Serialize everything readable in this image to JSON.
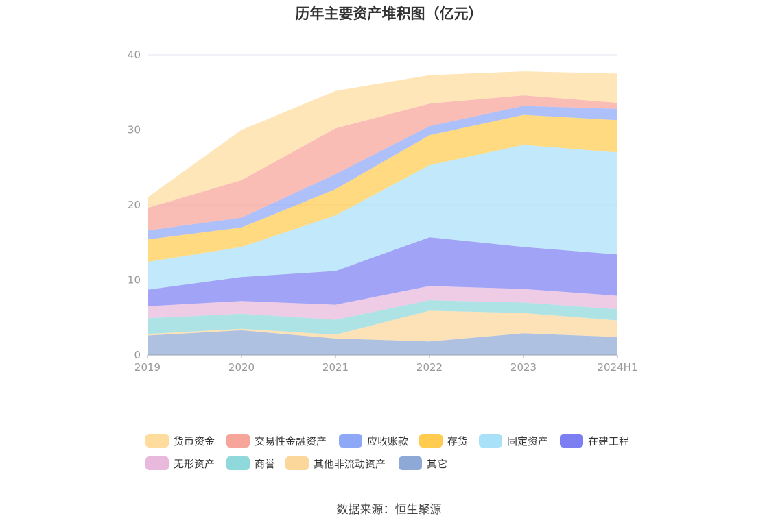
{
  "chart_data": {
    "type": "area",
    "stacked": true,
    "title": "历年主要资产堆积图（亿元）",
    "categories": [
      "2019",
      "2020",
      "2021",
      "2022",
      "2023",
      "2024H1"
    ],
    "ylim": [
      0,
      40
    ],
    "yticks": [
      0,
      10,
      20,
      30,
      40
    ],
    "grid": true,
    "legend_position": "bottom",
    "series": [
      {
        "name": "其它",
        "color": "#8fa9d6",
        "values": [
          2.6,
          3.3,
          2.2,
          1.8,
          2.9,
          2.4
        ]
      },
      {
        "name": "其他非流动资产",
        "color": "#fcd79b",
        "values": [
          0.2,
          0.2,
          0.5,
          4.1,
          2.7,
          2.2
        ]
      },
      {
        "name": "商誉",
        "color": "#8fd8dc",
        "values": [
          2.1,
          2.0,
          2.0,
          1.4,
          1.4,
          1.5
        ]
      },
      {
        "name": "无形资产",
        "color": "#e8b9dc",
        "values": [
          1.6,
          1.7,
          2.0,
          1.9,
          1.8,
          1.8
        ]
      },
      {
        "name": "在建工程",
        "color": "#7b7ff2",
        "values": [
          2.2,
          3.2,
          4.5,
          6.5,
          5.6,
          5.5
        ]
      },
      {
        "name": "固定资产",
        "color": "#a9e1f9",
        "values": [
          3.7,
          4.0,
          7.4,
          9.6,
          13.6,
          13.6
        ]
      },
      {
        "name": "存货",
        "color": "#ffcc4f",
        "values": [
          3.0,
          2.6,
          3.5,
          4.0,
          4.0,
          4.3
        ]
      },
      {
        "name": "应收账款",
        "color": "#8ea8f8",
        "values": [
          1.2,
          1.3,
          2.0,
          1.2,
          1.2,
          1.5
        ]
      },
      {
        "name": "交易性金融资产",
        "color": "#f7a49a",
        "values": [
          3.0,
          5.0,
          6.1,
          3.0,
          1.4,
          0.8
        ]
      },
      {
        "name": "货币资金",
        "color": "#fddc9e",
        "values": [
          1.4,
          6.7,
          5.0,
          3.8,
          3.2,
          3.9
        ]
      }
    ],
    "legend_order": [
      "货币资金",
      "交易性金融资产",
      "应收账款",
      "存货",
      "固定资产",
      "在建工程",
      "无形资产",
      "商誉",
      "其他非流动资产",
      "其它"
    ]
  },
  "source": "数据来源：恒生聚源"
}
